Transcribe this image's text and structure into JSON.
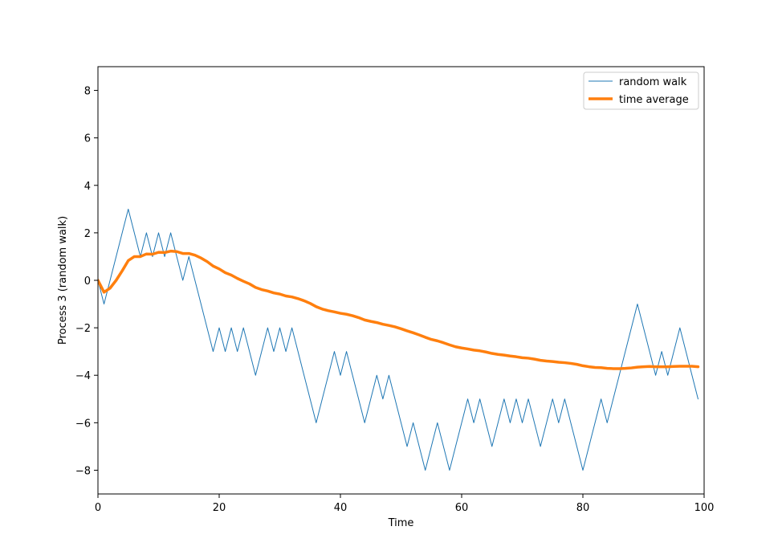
{
  "chart_data": {
    "type": "line",
    "xlabel": "Time",
    "ylabel": "Process 3 (random walk)",
    "xlim": [
      0,
      100
    ],
    "ylim": [
      -9,
      9
    ],
    "xticks": [
      0,
      20,
      40,
      60,
      80,
      100
    ],
    "yticks": [
      -8,
      -6,
      -4,
      -2,
      0,
      2,
      4,
      6,
      8
    ],
    "grid": false,
    "legend_position": "top-right",
    "series": [
      {
        "name": "random walk",
        "color": "#1f77b4",
        "style": "thin",
        "x": [
          0,
          1,
          2,
          3,
          4,
          5,
          6,
          7,
          8,
          9,
          10,
          11,
          12,
          13,
          14,
          15,
          16,
          17,
          18,
          19,
          20,
          21,
          22,
          23,
          24,
          25,
          26,
          27,
          28,
          29,
          30,
          31,
          32,
          33,
          34,
          35,
          36,
          37,
          38,
          39,
          40,
          41,
          42,
          43,
          44,
          45,
          46,
          47,
          48,
          49,
          50,
          51,
          52,
          53,
          54,
          55,
          56,
          57,
          58,
          59,
          60,
          61,
          62,
          63,
          64,
          65,
          66,
          67,
          68,
          69,
          70,
          71,
          72,
          73,
          74,
          75,
          76,
          77,
          78,
          79,
          80,
          81,
          82,
          83,
          84,
          85,
          86,
          87,
          88,
          89,
          90,
          91,
          92,
          93,
          94,
          95,
          96,
          97,
          98,
          99
        ],
        "y": [
          0,
          -1,
          0,
          1,
          2,
          3,
          2,
          1,
          2,
          1,
          2,
          1,
          2,
          1,
          0,
          1,
          0,
          -1,
          -2,
          -3,
          -2,
          -3,
          -2,
          -3,
          -2,
          -3,
          -4,
          -3,
          -2,
          -3,
          -2,
          -3,
          -2,
          -3,
          -4,
          -5,
          -6,
          -5,
          -4,
          -3,
          -4,
          -3,
          -4,
          -5,
          -6,
          -5,
          -4,
          -5,
          -4,
          -5,
          -6,
          -7,
          -6,
          -7,
          -8,
          -7,
          -6,
          -7,
          -8,
          -7,
          -6,
          -5,
          -6,
          -5,
          -6,
          -7,
          -6,
          -5,
          -6,
          -5,
          -6,
          -5,
          -6,
          -7,
          -6,
          -5,
          -6,
          -5,
          -6,
          -7,
          -8,
          -7,
          -6,
          -5,
          -6,
          -5,
          -4,
          -3,
          -2,
          -1,
          -2,
          -3,
          -4,
          -3,
          -4,
          -3,
          -2,
          -3,
          -4,
          -5
        ]
      },
      {
        "name": "time average",
        "color": "#ff7f0e",
        "style": "thick",
        "x": [
          0,
          1,
          2,
          3,
          4,
          5,
          6,
          7,
          8,
          9,
          10,
          11,
          12,
          13,
          14,
          15,
          16,
          17,
          18,
          19,
          20,
          21,
          22,
          23,
          24,
          25,
          26,
          27,
          28,
          29,
          30,
          31,
          32,
          33,
          34,
          35,
          36,
          37,
          38,
          39,
          40,
          41,
          42,
          43,
          44,
          45,
          46,
          47,
          48,
          49,
          50,
          51,
          52,
          53,
          54,
          55,
          56,
          57,
          58,
          59,
          60,
          61,
          62,
          63,
          64,
          65,
          66,
          67,
          68,
          69,
          70,
          71,
          72,
          73,
          74,
          75,
          76,
          77,
          78,
          79,
          80,
          81,
          82,
          83,
          84,
          85,
          86,
          87,
          88,
          89,
          90,
          91,
          92,
          93,
          94,
          95,
          96,
          97,
          98,
          99
        ],
        "y": [
          0,
          -0.5,
          -0.33,
          0,
          0.4,
          0.83,
          1,
          1,
          1.11,
          1.1,
          1.18,
          1.17,
          1.23,
          1.21,
          1.13,
          1.13,
          1.06,
          0.94,
          0.79,
          0.6,
          0.48,
          0.32,
          0.22,
          0.08,
          -0.04,
          -0.15,
          -0.3,
          -0.39,
          -0.45,
          -0.53,
          -0.58,
          -0.66,
          -0.7,
          -0.77,
          -0.86,
          -0.97,
          -1.11,
          -1.21,
          -1.28,
          -1.33,
          -1.39,
          -1.43,
          -1.49,
          -1.57,
          -1.67,
          -1.73,
          -1.78,
          -1.85,
          -1.9,
          -1.96,
          -2.04,
          -2.13,
          -2.21,
          -2.3,
          -2.4,
          -2.49,
          -2.55,
          -2.63,
          -2.72,
          -2.8,
          -2.85,
          -2.89,
          -2.94,
          -2.97,
          -3.02,
          -3.08,
          -3.12,
          -3.15,
          -3.19,
          -3.22,
          -3.26,
          -3.28,
          -3.32,
          -3.37,
          -3.4,
          -3.42,
          -3.45,
          -3.47,
          -3.5,
          -3.54,
          -3.6,
          -3.64,
          -3.67,
          -3.68,
          -3.71,
          -3.72,
          -3.72,
          -3.71,
          -3.69,
          -3.66,
          -3.64,
          -3.63,
          -3.64,
          -3.64,
          -3.64,
          -3.63,
          -3.62,
          -3.62,
          -3.62,
          -3.64
        ]
      }
    ]
  }
}
